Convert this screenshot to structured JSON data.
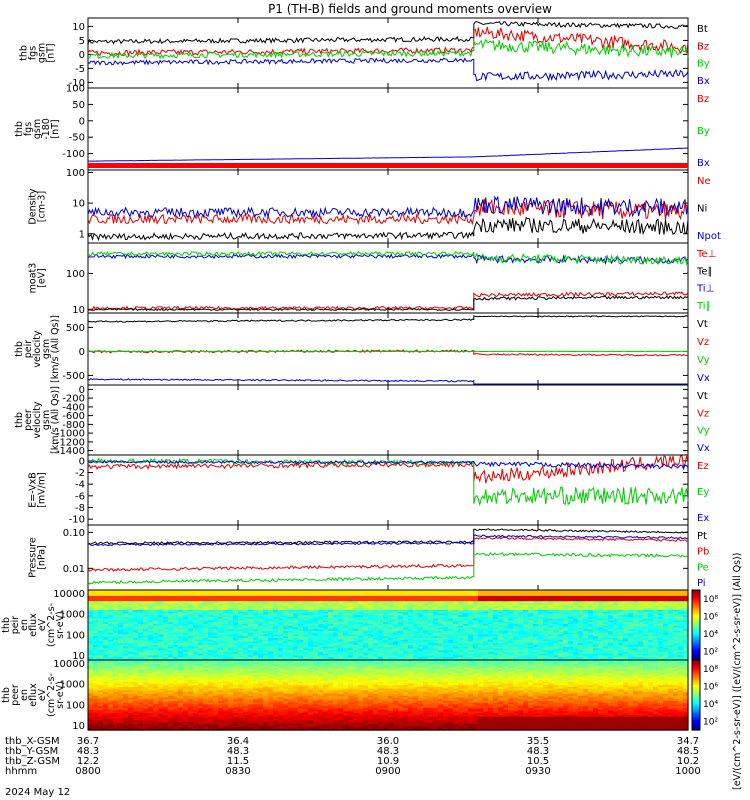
{
  "title": "P1 (TH-B) fields and ground moments overview",
  "date": "2024 May 12",
  "colors": {
    "black": "#000000",
    "red": "#e00000",
    "green": "#00cc00",
    "blue": "#0000cc"
  },
  "orbit": {
    "labels": [
      "thb_X-GSM",
      "thb_Y-GSM",
      "thb_Z-GSM",
      "hhmm"
    ],
    "columns": [
      {
        "values": [
          "36.7",
          "48.3",
          "12.2",
          "0800"
        ]
      },
      {
        "values": [
          "36.4",
          "48.3",
          "11.5",
          "0830"
        ]
      },
      {
        "values": [
          "36.0",
          "48.3",
          "10.9",
          "0900"
        ]
      },
      {
        "values": [
          "35.5",
          "48.3",
          "10.5",
          "0930"
        ]
      },
      {
        "values": [
          "34.7",
          "48.5",
          "10.2",
          "1000"
        ]
      }
    ]
  },
  "chart_data": [
    {
      "type": "line",
      "ylabel": [
        "thb",
        "fgs",
        "gsm",
        "[nT]"
      ],
      "ylim": [
        -12,
        13
      ],
      "yticks": [
        "10",
        "5",
        "0",
        "-5",
        "-10"
      ],
      "ytick_values": [
        10,
        5,
        0,
        -5,
        -10
      ],
      "x": [
        "0800",
        "0830",
        "0900",
        "0930",
        "1000"
      ],
      "series": [
        {
          "name": "Bt",
          "color": "black",
          "segments": [
            [
              4.5,
              5.5,
              0.8
            ],
            [
              11,
              10,
              0.8
            ]
          ]
        },
        {
          "name": "Bz",
          "color": "red",
          "segments": [
            [
              0.5,
              1.5,
              1.0
            ],
            [
              8,
              2.5,
              2.2
            ]
          ]
        },
        {
          "name": "By",
          "color": "green",
          "segments": [
            [
              -0.5,
              0.5,
              1.0
            ],
            [
              3.5,
              0.5,
              2.2
            ]
          ]
        },
        {
          "name": "Bx",
          "color": "blue",
          "segments": [
            [
              -3,
              -2,
              0.8
            ],
            [
              -8,
              -7,
              1.5
            ]
          ]
        }
      ]
    },
    {
      "type": "line",
      "ylabel": [
        "thb",
        "fgs",
        "gsm",
        "-180",
        "[nT]"
      ],
      "ylim": [
        -150,
        100
      ],
      "yticks": [
        "100",
        "50",
        "0",
        "-50",
        "-100"
      ],
      "ytick_values": [
        100,
        50,
        0,
        -50,
        -100
      ],
      "x": [
        "0800",
        "0830",
        "0900",
        "0930",
        "1000"
      ],
      "series": [
        {
          "name": "Bz",
          "color": "red",
          "segments": []
        },
        {
          "name": "By",
          "color": "green",
          "segments": []
        },
        {
          "name": "Bx",
          "color": "blue",
          "segments": [
            [
              -123,
              -110,
              0.2
            ],
            [
              -110,
              -83,
              0.4
            ]
          ]
        }
      ]
    },
    {
      "type": "line",
      "ylabel": [
        "Density",
        "[cm-3]"
      ],
      "log": true,
      "ylim": [
        0.5,
        120
      ],
      "yticks": [
        "100",
        "10",
        "1"
      ],
      "ytick_values": [
        100,
        10,
        1
      ],
      "x": [
        "0800",
        "0830",
        "0900",
        "0930",
        "1000"
      ],
      "series": [
        {
          "name": "Ne",
          "color": "red",
          "segments": [
            [
              3,
              3,
              0.3
            ],
            [
              7,
              5,
              0.6
            ]
          ]
        },
        {
          "name": "Ni",
          "color": "black",
          "segments": [
            [
              0.8,
              0.9,
              0.2
            ],
            [
              2.0,
              1.6,
              0.5
            ]
          ]
        },
        {
          "name": "Npot",
          "color": "blue",
          "segments": [
            [
              5,
              5,
              0.3
            ],
            [
              9,
              7,
              0.6
            ]
          ]
        }
      ]
    },
    {
      "type": "line",
      "ylabel": [
        "moat3",
        "[eV]"
      ],
      "log": true,
      "ylim": [
        8,
        700
      ],
      "yticks": [
        "100",
        "10"
      ],
      "ytick_values": [
        100,
        10
      ],
      "x": [
        "0800",
        "0830",
        "0900",
        "0930",
        "1000"
      ],
      "series": [
        {
          "name": "Te⊥",
          "color": "red",
          "segments": [
            [
              11,
              11,
              0.08
            ],
            [
              25,
              28,
              0.1
            ]
          ]
        },
        {
          "name": "Te∥",
          "color": "black",
          "segments": [
            [
              10,
              10,
              0.05
            ],
            [
              20,
              22,
              0.08
            ]
          ]
        },
        {
          "name": "Ti⊥",
          "color": "blue",
          "segments": [
            [
              300,
              300,
              0.1
            ],
            [
              250,
              230,
              0.2
            ]
          ]
        },
        {
          "name": "Ti∥",
          "color": "green",
          "segments": [
            [
              350,
              360,
              0.1
            ],
            [
              270,
              230,
              0.25
            ]
          ]
        }
      ]
    },
    {
      "type": "line",
      "ylabel": [
        "thb",
        "peir",
        "velocity",
        "gsm",
        "[km/s (All Qs)]"
      ],
      "ylim": [
        -700,
        800
      ],
      "yticks": [
        "500",
        "0",
        "-500"
      ],
      "ytick_values": [
        500,
        0,
        -500
      ],
      "x": [
        "0800",
        "0830",
        "0900",
        "0930",
        "1000"
      ],
      "series": [
        {
          "name": "Vt",
          "color": "black",
          "segments": [
            [
              620,
              660,
              15
            ],
            [
              730,
              730,
              10
            ]
          ]
        },
        {
          "name": "Vz",
          "color": "red",
          "segments": [
            [
              -10,
              10,
              25
            ],
            [
              -60,
              -80,
              15
            ]
          ]
        },
        {
          "name": "Vy",
          "color": "green",
          "segments": [
            [
              0,
              0,
              5
            ],
            [
              0,
              0,
              3
            ]
          ]
        },
        {
          "name": "Vx",
          "color": "blue",
          "segments": [
            [
              -580,
              -620,
              15
            ],
            [
              -700,
              -700,
              8
            ]
          ]
        }
      ]
    },
    {
      "type": "line",
      "ylabel": [
        "thb",
        "peer",
        "velocity",
        "gsm",
        "[km/s (All Qs)]"
      ],
      "ylim": [
        -1500,
        100
      ],
      "yticks": [
        "0",
        "-200",
        "-400",
        "-600",
        "-800",
        "-1000",
        "-1200",
        "-1400"
      ],
      "ytick_values": [
        0,
        -200,
        -400,
        -600,
        -800,
        -1000,
        -1200,
        -1400
      ],
      "x": [
        "0800",
        "0830",
        "0900",
        "0930",
        "1000"
      ],
      "series": [
        {
          "name": "Vt",
          "color": "black",
          "segments": []
        },
        {
          "name": "Vz",
          "color": "red",
          "segments": []
        },
        {
          "name": "Vy",
          "color": "green",
          "segments": []
        },
        {
          "name": "Vx",
          "color": "blue",
          "segments": []
        }
      ]
    },
    {
      "type": "line",
      "ylabel": [
        "E=-VxB",
        "[mV/m]"
      ],
      "ylim": [
        -11,
        1
      ],
      "yticks": [
        "0",
        "-2",
        "-4",
        "-6",
        "-8",
        "-10"
      ],
      "ytick_values": [
        0,
        -2,
        -4,
        -6,
        -8,
        -10
      ],
      "x": [
        "0800",
        "0830",
        "0900",
        "0930",
        "1000"
      ],
      "series": [
        {
          "name": "Ez",
          "color": "red",
          "segments": [
            [
              -1,
              -0.6,
              0.4
            ],
            [
              -3,
              0.2,
              1.2
            ]
          ]
        },
        {
          "name": "Ey",
          "color": "green",
          "segments": [
            [
              0,
              -0.3,
              0.4
            ],
            [
              -6,
              -6,
              1.5
            ]
          ]
        },
        {
          "name": "Ex",
          "color": "blue",
          "segments": [
            [
              -0.2,
              -0.3,
              0.2
            ],
            [
              -0.5,
              -1,
              0.4
            ]
          ]
        }
      ]
    },
    {
      "type": "line",
      "ylabel": [
        "Pressure",
        "[nPa]"
      ],
      "log": true,
      "ylim": [
        0.0025,
        0.16
      ],
      "yticks": [
        "0.10",
        "0.01"
      ],
      "ytick_values": [
        0.1,
        0.01
      ],
      "x": [
        "0800",
        "0830",
        "0900",
        "0930",
        "1000"
      ],
      "series": [
        {
          "name": "Pt",
          "color": "black",
          "segments": [
            [
              0.05,
              0.055,
              0.06
            ],
            [
              0.12,
              0.1,
              0.05
            ]
          ]
        },
        {
          "name": "Pb",
          "color": "red",
          "segments": [
            [
              0.009,
              0.012,
              0.08
            ],
            [
              0.07,
              0.06,
              0.06
            ]
          ]
        },
        {
          "name": "Pe",
          "color": "green",
          "segments": [
            [
              0.004,
              0.0055,
              0.08
            ],
            [
              0.025,
              0.022,
              0.08
            ]
          ]
        },
        {
          "name": "Pi",
          "color": "blue",
          "segments": [
            [
              0.045,
              0.05,
              0.05
            ],
            [
              0.08,
              0.07,
              0.05
            ]
          ]
        }
      ]
    },
    {
      "type": "heatmap",
      "ylabel": [
        "thb",
        "peir",
        "en",
        "eflux",
        "eV",
        "(cm^2-s-",
        "sr-eV)"
      ],
      "log": true,
      "ylim": [
        6,
        15000
      ],
      "yticks": [
        "10000",
        "1000",
        "100",
        "10"
      ],
      "ytick_values": [
        10000,
        1000,
        100,
        10
      ],
      "x": [
        "0800",
        "0830",
        "0900",
        "0930",
        "1000"
      ],
      "colorbar": {
        "ticks": [
          "10⁸",
          "10⁶",
          "10⁴",
          "10²"
        ],
        "tick_values": [
          8,
          6,
          4,
          2
        ],
        "range": [
          1,
          9
        ]
      }
    },
    {
      "type": "heatmap",
      "ylabel": [
        "thb",
        "peer",
        "en",
        "eflux",
        "eV",
        "(cm^2-s-",
        "sr-eV)"
      ],
      "log": true,
      "ylim": [
        6,
        15000
      ],
      "yticks": [
        "10000",
        "1000",
        "100",
        "10"
      ],
      "ytick_values": [
        10000,
        1000,
        100,
        10
      ],
      "x": [
        "0800",
        "0830",
        "0900",
        "0930",
        "1000"
      ],
      "colorbar": {
        "ticks": [
          "10⁸",
          "10⁶",
          "10⁴",
          "10²"
        ],
        "tick_values": [
          8,
          6,
          4,
          2
        ],
        "range": [
          1,
          9
        ]
      }
    }
  ],
  "colorbar_label": "[eV/(cm^2-s-sr-eV)] ([eV/(cm^2-s-sr-eV)] (All Qs))"
}
